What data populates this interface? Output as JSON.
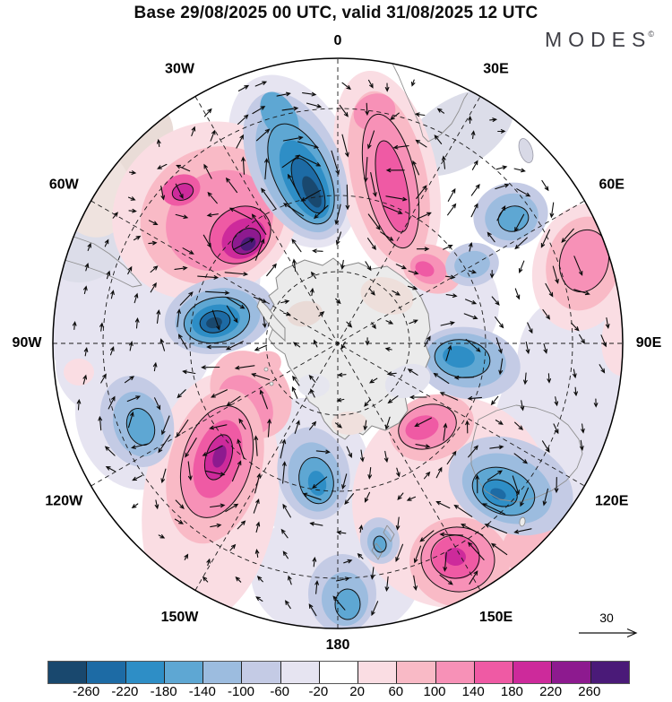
{
  "header": {
    "title": "Base 29/08/2025 00 UTC, valid 31/08/2025 12 UTC",
    "logo": "MODES",
    "logo_mark": "©"
  },
  "map": {
    "longitude_labels": [
      {
        "label": "0",
        "deg": 0
      },
      {
        "label": "30E",
        "deg": 30
      },
      {
        "label": "60E",
        "deg": 60
      },
      {
        "label": "90E",
        "deg": 90
      },
      {
        "label": "120E",
        "deg": 120
      },
      {
        "label": "150E",
        "deg": 150
      },
      {
        "label": "180",
        "deg": 180
      },
      {
        "label": "150W",
        "deg": 210
      },
      {
        "label": "120W",
        "deg": 240
      },
      {
        "label": "90W",
        "deg": 270
      },
      {
        "label": "60W",
        "deg": 300
      },
      {
        "label": "30W",
        "deg": 330
      }
    ],
    "reference_vector_label": "30"
  },
  "colorbar": {
    "colors": [
      "#19486e",
      "#1d6ba5",
      "#2e8ec6",
      "#5ea7d3",
      "#9cbcdf",
      "#c4cbe5",
      "#e6e4f1",
      "#ffffff",
      "#fadde3",
      "#f9bac6",
      "#f791b7",
      "#ef5aa4",
      "#cd2a9b",
      "#8d1a8f",
      "#4a1a78"
    ],
    "tick_labels": [
      "-260",
      "-220",
      "-180",
      "-140",
      "-100",
      "-60",
      "-20",
      "20",
      "60",
      "100",
      "140",
      "180",
      "220",
      "260"
    ]
  },
  "chart_data": {
    "type": "map",
    "subtype": "filled-contour anomaly field with wind vectors",
    "projection": "south polar stereographic",
    "title": "Base 29/08/2025 00 UTC, valid 31/08/2025 12 UTC",
    "base_time": "29/08/2025 00 UTC",
    "valid_time": "31/08/2025 12 UTC",
    "levels": [
      -260,
      -220,
      -180,
      -140,
      -100,
      -60,
      -20,
      20,
      60,
      100,
      140,
      180,
      220,
      260
    ],
    "palette": [
      "#19486e",
      "#1d6ba5",
      "#2e8ec6",
      "#5ea7d3",
      "#9cbcdf",
      "#c4cbe5",
      "#e6e4f1",
      "#ffffff",
      "#fadde3",
      "#f9bac6",
      "#f791b7",
      "#ef5aa4",
      "#cd2a9b",
      "#8d1a8f",
      "#4a1a78"
    ],
    "open_ended_colorbar": true,
    "vector_reference": 30,
    "graticule": {
      "lat_circles": [
        "30S",
        "50S",
        "70S"
      ],
      "lon_spokes_every_deg": 30
    },
    "longitude_ring_labels": [
      "0",
      "30E",
      "60E",
      "90E",
      "120E",
      "150E",
      "180",
      "150W",
      "120W",
      "90W",
      "60W",
      "30W"
    ],
    "anomaly_centers": [
      {
        "sign": "negative",
        "lon": "10W",
        "lat": "45-60S",
        "peak": "< -260"
      },
      {
        "sign": "positive",
        "lon": "40W",
        "lat": "50S",
        "peak": "> 260"
      },
      {
        "sign": "positive",
        "lon": "45W",
        "lat": "35S",
        "peak": "240"
      },
      {
        "sign": "negative",
        "lon": "80W",
        "lat": "55-60S",
        "peak": "< -260"
      },
      {
        "sign": "negative",
        "lon": "110W",
        "lat": "35S",
        "peak": "-120"
      },
      {
        "sign": "positive",
        "lon": "140W",
        "lat": "45-55S",
        "peak": "230"
      },
      {
        "sign": "negative",
        "lon": "170W",
        "lat": "53S",
        "peak": "-150"
      },
      {
        "sign": "negative",
        "lon": "180",
        "lat": "25-30S",
        "peak": "-140"
      },
      {
        "sign": "negative",
        "lon": "170E",
        "lat": "40S",
        "peak": "-100"
      },
      {
        "sign": "positive",
        "lon": "150E",
        "lat": "30S",
        "peak": "200"
      },
      {
        "sign": "positive",
        "lon": "135E",
        "lat": "55S",
        "peak": "160"
      },
      {
        "sign": "negative",
        "lon": "130E",
        "lat": "33S",
        "peak": "-200"
      },
      {
        "sign": "negative",
        "lon": "95E",
        "lat": "55-60S",
        "peak": "-180"
      },
      {
        "sign": "positive",
        "lon": "70E",
        "lat": "25-35S",
        "peak": "140"
      },
      {
        "sign": "negative",
        "lon": "55E",
        "lat": "35S",
        "peak": "-140"
      },
      {
        "sign": "positive",
        "lon": "15E",
        "lat": "40-60S",
        "peak": "200"
      }
    ]
  }
}
